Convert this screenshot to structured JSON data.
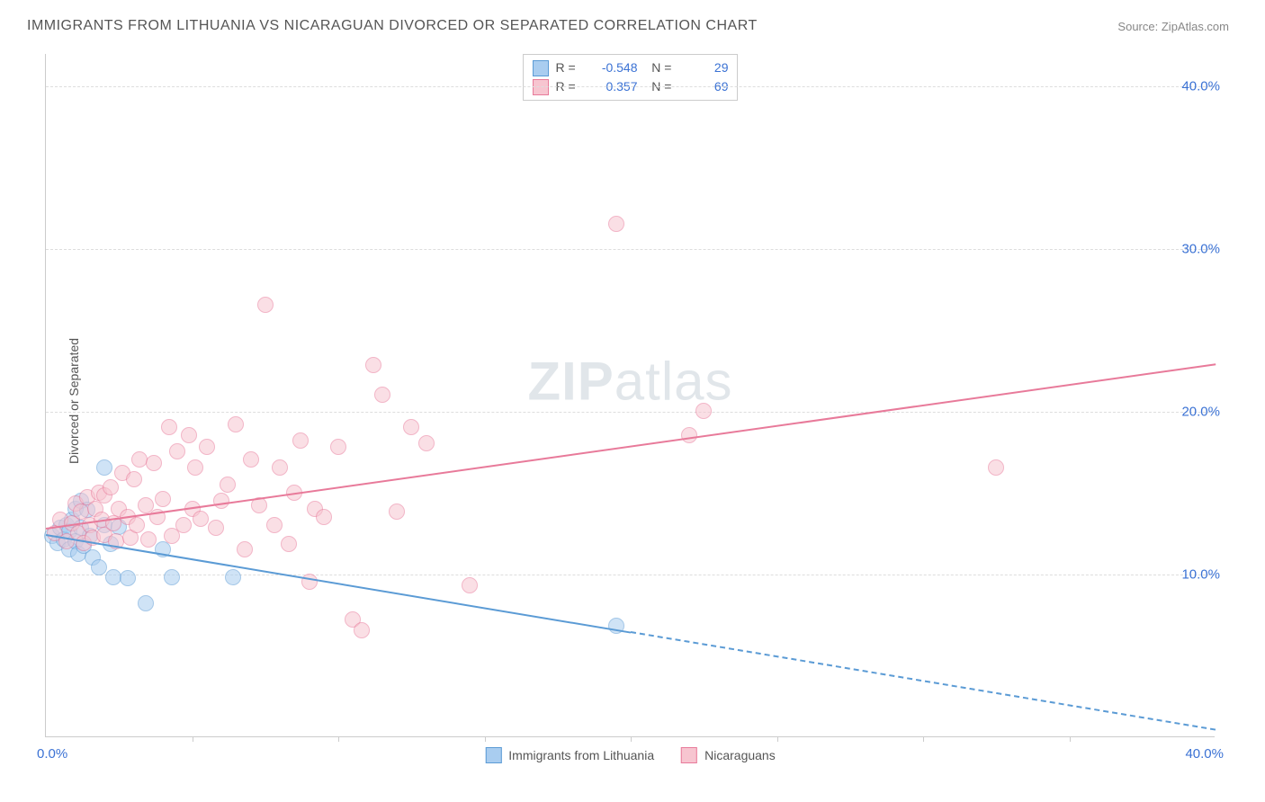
{
  "title": "IMMIGRANTS FROM LITHUANIA VS NICARAGUAN DIVORCED OR SEPARATED CORRELATION CHART",
  "source_label": "Source:",
  "source_name": "ZipAtlas.com",
  "ylabel": "Divorced or Separated",
  "watermark_a": "ZIP",
  "watermark_b": "atlas",
  "chart": {
    "type": "scatter",
    "xlim": [
      0,
      40
    ],
    "ylim": [
      0,
      42
    ],
    "x_origin_label": "0.0%",
    "x_max_label": "40.0%",
    "y_ticks": [
      10,
      20,
      30,
      40
    ],
    "y_tick_labels": [
      "10.0%",
      "20.0%",
      "30.0%",
      "40.0%"
    ],
    "x_minor_ticks": [
      5,
      10,
      15,
      20,
      25,
      30,
      35
    ],
    "tick_color": "#3b72d4",
    "grid_color": "#dddddd",
    "background_color": "#ffffff",
    "axis_color": "#cccccc",
    "marker_radius": 9,
    "marker_opacity": 0.55,
    "series": [
      {
        "name": "Immigrants from Lithuania",
        "fill": "#a9cdf0",
        "stroke": "#5b9bd5",
        "R": "-0.548",
        "N": "29",
        "trend": {
          "x1": 0,
          "y1": 12.5,
          "x2": 20,
          "y2": 6.5,
          "dash_after_x": 20,
          "x2_ext": 40,
          "y2_ext": 0.5
        },
        "points": [
          [
            0.2,
            12.3
          ],
          [
            0.4,
            11.9
          ],
          [
            0.5,
            12.8
          ],
          [
            0.6,
            12.1
          ],
          [
            0.7,
            13.0
          ],
          [
            0.8,
            11.5
          ],
          [
            0.8,
            12.6
          ],
          [
            0.9,
            13.3
          ],
          [
            1.0,
            12.0
          ],
          [
            1.0,
            14.0
          ],
          [
            1.1,
            11.2
          ],
          [
            1.2,
            14.5
          ],
          [
            1.2,
            12.8
          ],
          [
            1.3,
            11.7
          ],
          [
            1.4,
            13.9
          ],
          [
            1.5,
            12.3
          ],
          [
            1.6,
            11.0
          ],
          [
            1.8,
            10.4
          ],
          [
            2.0,
            16.5
          ],
          [
            2.0,
            13.0
          ],
          [
            2.2,
            11.8
          ],
          [
            2.3,
            9.8
          ],
          [
            2.5,
            12.9
          ],
          [
            2.8,
            9.7
          ],
          [
            3.4,
            8.2
          ],
          [
            4.3,
            9.8
          ],
          [
            6.4,
            9.8
          ],
          [
            4.0,
            11.5
          ],
          [
            19.5,
            6.8
          ]
        ]
      },
      {
        "name": "Nicaraguans",
        "fill": "#f7c5d0",
        "stroke": "#e87a9a",
        "R": "0.357",
        "N": "69",
        "trend": {
          "x1": 0,
          "y1": 12.9,
          "x2": 40,
          "y2": 23.0
        },
        "points": [
          [
            0.3,
            12.5
          ],
          [
            0.5,
            13.3
          ],
          [
            0.7,
            12.0
          ],
          [
            0.9,
            13.1
          ],
          [
            1.0,
            14.3
          ],
          [
            1.1,
            12.5
          ],
          [
            1.2,
            13.8
          ],
          [
            1.3,
            11.9
          ],
          [
            1.4,
            14.7
          ],
          [
            1.5,
            13.0
          ],
          [
            1.6,
            12.2
          ],
          [
            1.7,
            14.0
          ],
          [
            1.8,
            15.0
          ],
          [
            1.9,
            13.3
          ],
          [
            2.0,
            12.4
          ],
          [
            2.0,
            14.8
          ],
          [
            2.2,
            15.3
          ],
          [
            2.3,
            13.1
          ],
          [
            2.4,
            12.0
          ],
          [
            2.5,
            14.0
          ],
          [
            2.6,
            16.2
          ],
          [
            2.8,
            13.5
          ],
          [
            2.9,
            12.2
          ],
          [
            3.0,
            15.8
          ],
          [
            3.1,
            13.0
          ],
          [
            3.2,
            17.0
          ],
          [
            3.4,
            14.2
          ],
          [
            3.5,
            12.1
          ],
          [
            3.7,
            16.8
          ],
          [
            3.8,
            13.5
          ],
          [
            4.0,
            14.6
          ],
          [
            4.2,
            19.0
          ],
          [
            4.3,
            12.3
          ],
          [
            4.5,
            17.5
          ],
          [
            4.7,
            13.0
          ],
          [
            4.9,
            18.5
          ],
          [
            5.0,
            14.0
          ],
          [
            5.1,
            16.5
          ],
          [
            5.3,
            13.4
          ],
          [
            5.5,
            17.8
          ],
          [
            5.8,
            12.8
          ],
          [
            6.0,
            14.5
          ],
          [
            6.2,
            15.5
          ],
          [
            6.5,
            19.2
          ],
          [
            6.8,
            11.5
          ],
          [
            7.0,
            17.0
          ],
          [
            7.3,
            14.2
          ],
          [
            7.5,
            26.5
          ],
          [
            7.8,
            13.0
          ],
          [
            8.0,
            16.5
          ],
          [
            8.3,
            11.8
          ],
          [
            8.5,
            15.0
          ],
          [
            8.7,
            18.2
          ],
          [
            9.0,
            9.5
          ],
          [
            9.2,
            14.0
          ],
          [
            10.0,
            17.8
          ],
          [
            10.5,
            7.2
          ],
          [
            10.8,
            6.5
          ],
          [
            11.2,
            22.8
          ],
          [
            11.5,
            21.0
          ],
          [
            12.0,
            13.8
          ],
          [
            12.5,
            19.0
          ],
          [
            13.0,
            18.0
          ],
          [
            14.5,
            9.3
          ],
          [
            19.5,
            31.5
          ],
          [
            22.0,
            18.5
          ],
          [
            22.5,
            20.0
          ],
          [
            32.5,
            16.5
          ],
          [
            9.5,
            13.5
          ]
        ]
      }
    ]
  },
  "legend_bottom": [
    {
      "label": "Immigrants from Lithuania",
      "fill": "#a9cdf0",
      "stroke": "#5b9bd5"
    },
    {
      "label": "Nicaraguans",
      "fill": "#f7c5d0",
      "stroke": "#e87a9a"
    }
  ]
}
